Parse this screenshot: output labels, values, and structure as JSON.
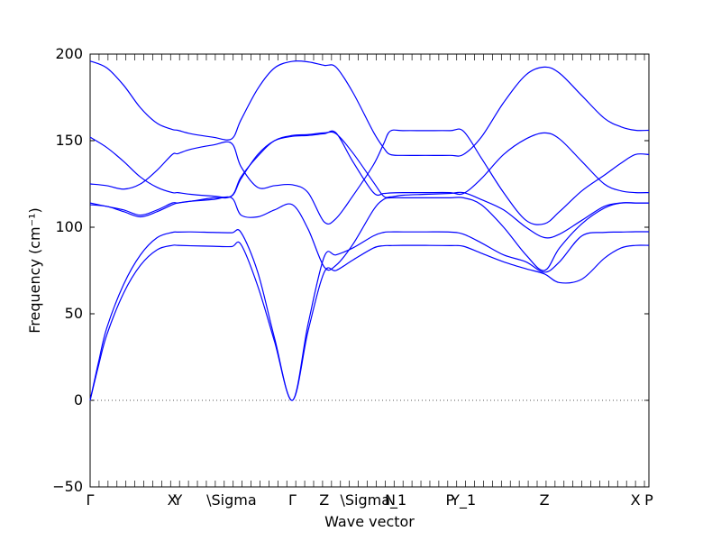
{
  "chart_data": {
    "type": "line",
    "title": "",
    "xlabel": "Wave vector",
    "ylabel": "Frequency (cm⁻¹)",
    "ylim": [
      -50,
      200
    ],
    "yticks": [
      -50,
      0,
      50,
      100,
      150,
      200
    ],
    "xlim": [
      0,
      100
    ],
    "high_symmetry_points": [
      {
        "label": "Γ",
        "x": 0
      },
      {
        "label": "X",
        "x": 14.7
      },
      {
        "label": "Y",
        "x": 15.7
      },
      {
        "label": "\\Sigma",
        "x": 25.3
      },
      {
        "label": "Γ",
        "x": 36.2
      },
      {
        "label": "Z",
        "x": 41.9
      },
      {
        "label": "\\Sigma_1",
        "x": 50.7
      },
      {
        "label": "N",
        "x": 53.7
      },
      {
        "label": "P",
        "x": 64.4
      },
      {
        "label": "Y_1",
        "x": 66.8
      },
      {
        "label": "Z",
        "x": 81.3
      },
      {
        "label": "X",
        "x": 97.6
      },
      {
        "label": "P",
        "x": 100
      }
    ],
    "zero_line": {
      "y": 0,
      "style": "dotted"
    },
    "series_color": "#0000ff",
    "series": [
      {
        "x": [
          0,
          1.5,
          3,
          6,
          9,
          12,
          14.7,
          15.7,
          18,
          22,
          25.3,
          27,
          30,
          33,
          36.2,
          39,
          41.9,
          44,
          47,
          50.7,
          52.5,
          53.7,
          56,
          60,
          64.4,
          66.8,
          70,
          74,
          78,
          81.3,
          84,
          88,
          92,
          95,
          97.6,
          100
        ],
        "y": [
          0,
          20,
          38,
          62,
          78,
          87,
          89.5,
          89.5,
          89.3,
          89,
          88.8,
          90,
          66,
          34,
          0,
          40,
          74,
          75,
          81,
          88,
          89.3,
          89.4,
          89.5,
          89.5,
          89.4,
          89,
          85,
          80,
          76,
          73,
          68,
          70,
          82,
          88,
          89.5,
          89.5
        ]
      },
      {
        "x": [
          0,
          1.5,
          3,
          6,
          9,
          12,
          14.7,
          15.7,
          18,
          22,
          25.3,
          27,
          30,
          33,
          36.2,
          39,
          41.9,
          44,
          47,
          50.7,
          52.5,
          53.7,
          56,
          60,
          64.4,
          66.8,
          70,
          74,
          78,
          81.3,
          84,
          88,
          92,
          95,
          97.6,
          100
        ],
        "y": [
          0,
          22,
          42,
          67,
          84,
          94,
          97,
          97.2,
          97.3,
          97,
          96.8,
          97,
          74,
          36,
          0,
          44,
          83,
          84,
          88,
          95,
          97,
          97.3,
          97.3,
          97.3,
          97.2,
          96,
          91,
          84,
          80,
          74,
          80,
          95,
          97,
          97.2,
          97.4,
          97.4
        ]
      },
      {
        "x": [
          0,
          3,
          6,
          9,
          12,
          14.7,
          15.7,
          18,
          22,
          25.3,
          27,
          30,
          33,
          36.2,
          39,
          41.9,
          44,
          47,
          50.7,
          52.5,
          53.7,
          56,
          60,
          64.4,
          66.8,
          70,
          74,
          78,
          81.3,
          84,
          88,
          92,
          95,
          97.6,
          100
        ],
        "y": [
          113,
          112,
          109,
          106,
          109,
          113,
          114,
          115,
          116,
          117,
          107,
          106,
          110,
          113,
          99,
          77,
          78,
          90,
          110,
          116,
          117,
          117,
          117,
          117,
          117,
          113,
          100,
          84,
          75,
          88,
          102,
          111,
          114,
          114,
          114
        ]
      },
      {
        "x": [
          0,
          3,
          6,
          9,
          12,
          14.7,
          15.7,
          18,
          22,
          25.3,
          27,
          30,
          33,
          36.2,
          39,
          41.9,
          44,
          47,
          50.7,
          52.5,
          53.7,
          56,
          60,
          64.4,
          66.8,
          70,
          74,
          78,
          81.3,
          84,
          88,
          92,
          95,
          97.6,
          100
        ],
        "y": [
          114,
          112,
          110,
          107,
          110,
          114,
          114,
          115,
          117,
          118,
          129,
          141,
          150,
          153,
          153.5,
          154.5,
          154,
          143,
          126,
          118,
          117.5,
          118.5,
          119,
          119.5,
          120,
          116,
          110,
          100,
          94,
          96,
          104,
          112,
          114,
          114,
          114
        ]
      },
      {
        "x": [
          0,
          3,
          6,
          9,
          12,
          14.7,
          15.7,
          18,
          22,
          25.3,
          27,
          30,
          33,
          36.2,
          39,
          41.9,
          44,
          47,
          50.7,
          52.5,
          53.7,
          56,
          60,
          64.4,
          66.8,
          70,
          74,
          78,
          81.3,
          84,
          88,
          92,
          95,
          97.6,
          100
        ],
        "y": [
          152,
          146,
          138,
          129,
          123,
          120,
          120,
          119,
          118,
          118,
          128,
          142,
          150,
          152.5,
          153,
          154,
          154.5,
          138,
          120,
          119.5,
          119.8,
          120,
          120,
          120,
          119.5,
          128,
          142,
          151,
          154.5,
          151,
          138,
          125,
          121,
          120,
          120
        ]
      },
      {
        "x": [
          0,
          3,
          6,
          9,
          12,
          14.7,
          15.7,
          18,
          22,
          25.3,
          27,
          30,
          33,
          36.2,
          39,
          41.9,
          44,
          47,
          50.7,
          52.5,
          53.7,
          56,
          60,
          64.4,
          66.8,
          70,
          74,
          78,
          81.3,
          84,
          88,
          92,
          95,
          97.6,
          100
        ],
        "y": [
          125,
          124,
          122,
          125,
          133,
          142,
          142.5,
          145,
          147.5,
          148.5,
          135,
          123,
          124,
          124.5,
          120,
          103,
          105,
          118,
          136,
          148,
          155.5,
          155.8,
          155.8,
          155.8,
          155.5,
          140,
          120,
          104,
          102,
          109,
          121,
          130,
          137,
          142,
          142
        ]
      },
      {
        "x": [
          0,
          3,
          6,
          9,
          12,
          14.7,
          15.7,
          18,
          22,
          25.3,
          27,
          30,
          33,
          36.2,
          39,
          41.9,
          44,
          47,
          50.7,
          52.5,
          53.7,
          56,
          60,
          64.4,
          66.8,
          70,
          74,
          78,
          81.3,
          84,
          88,
          92,
          95,
          97.6,
          100
        ],
        "y": [
          196,
          192,
          182,
          169,
          160,
          156.5,
          156,
          154,
          152,
          151,
          162,
          180,
          192,
          195.8,
          195.5,
          193.5,
          192.5,
          178,
          155,
          146,
          142,
          141.5,
          141.5,
          141.5,
          142,
          152,
          172,
          188,
          192.5,
          189,
          176,
          163,
          158,
          156,
          156
        ]
      }
    ]
  }
}
